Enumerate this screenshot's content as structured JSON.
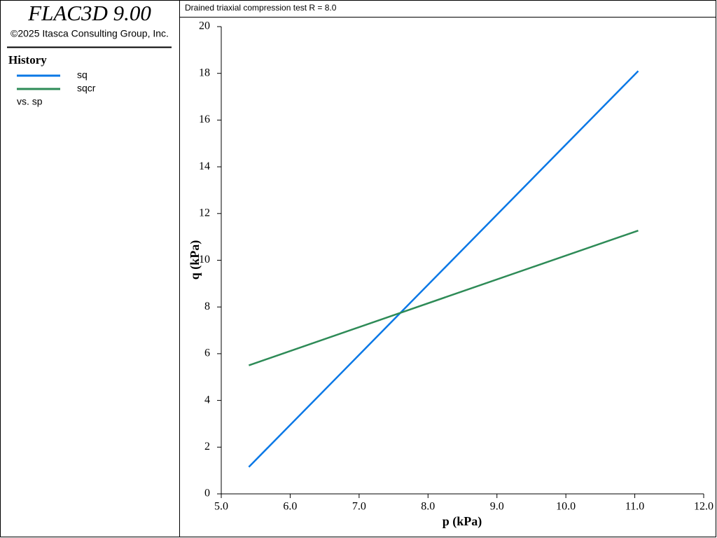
{
  "app": {
    "name": "FLAC3D 9.00",
    "copyright": "©2025 Itasca Consulting Group, Inc."
  },
  "legend": {
    "title": "History",
    "vs_label": "vs. sp"
  },
  "chart_data": {
    "type": "line",
    "title": "Drained triaxial compression test R = 8.0",
    "xlabel": "p (kPa)",
    "ylabel": "q (kPa)",
    "x": [
      5.4,
      7.6,
      11.05
    ],
    "series": [
      {
        "name": "sq",
        "color": "#0a78e6",
        "values": [
          1.15,
          7.75,
          18.1
        ]
      },
      {
        "name": "sqcr",
        "color": "#2e8b57",
        "values": [
          5.5,
          7.75,
          11.27
        ]
      }
    ],
    "xlim": [
      5.0,
      12.0
    ],
    "xticks": [
      {
        "value": 5,
        "label": "5.0"
      },
      {
        "value": 6,
        "label": "6.0"
      },
      {
        "value": 7,
        "label": "7.0"
      },
      {
        "value": 8,
        "label": "8.0"
      },
      {
        "value": 9,
        "label": "9.0"
      },
      {
        "value": 10,
        "label": "10.0"
      },
      {
        "value": 11,
        "label": "11.0"
      },
      {
        "value": 12,
        "label": "12.0"
      }
    ],
    "ylim": [
      0,
      20
    ],
    "yticks": [
      0,
      2,
      4,
      6,
      8,
      10,
      12,
      14,
      16,
      18,
      20
    ]
  }
}
